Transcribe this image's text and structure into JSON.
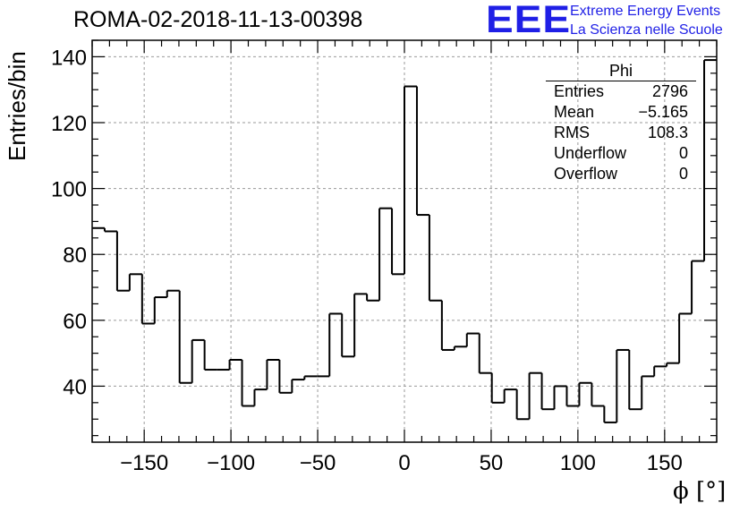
{
  "header": {
    "run_title": "ROMA-02-2018-11-13-00398",
    "logo_mark": "EEE",
    "logo_line1": "Extreme Energy Events",
    "logo_line2": "La Scienza nelle Scuole"
  },
  "stats": {
    "title": "Phi",
    "rows": [
      {
        "key": "Entries",
        "value": "2796"
      },
      {
        "key": "Mean",
        "value": "−5.165"
      },
      {
        "key": "RMS",
        "value": "108.3"
      },
      {
        "key": "Underflow",
        "value": "0"
      },
      {
        "key": "Overflow",
        "value": "0"
      }
    ]
  },
  "colors": {
    "histogram_line": "#000000",
    "grid": "#9a9a9a",
    "logo": "#1f1fe6"
  },
  "chart_data": {
    "type": "bar",
    "histogram": true,
    "title": "ROMA-02-2018-11-13-00398",
    "xlabel": "ϕ [°]",
    "ylabel": "Entries/bin",
    "xlim": [
      -180,
      180
    ],
    "ylim": [
      23,
      145
    ],
    "grid": true,
    "x_ticks": [
      -150,
      -100,
      -50,
      0,
      50,
      100,
      150
    ],
    "x_tick_labels": [
      "−150",
      "−100",
      "−50",
      "0",
      "50",
      "100",
      "150"
    ],
    "y_ticks": [
      40,
      60,
      80,
      100,
      120,
      140
    ],
    "y_tick_labels": [
      "40",
      "60",
      "80",
      "100",
      "120",
      "140"
    ],
    "bin_edges": [
      -180,
      -172.8,
      -165.6,
      -158.4,
      -151.2,
      -144,
      -136.8,
      -129.6,
      -122.4,
      -115.2,
      -108,
      -100.8,
      -93.6,
      -86.4,
      -79.2,
      -72,
      -64.8,
      -57.6,
      -50.4,
      -43.2,
      -36,
      -28.8,
      -21.6,
      -14.4,
      -7.2,
      0,
      7.2,
      14.4,
      21.6,
      28.8,
      36,
      43.2,
      50.4,
      57.6,
      64.8,
      72,
      79.2,
      86.4,
      93.6,
      100.8,
      108,
      115.2,
      122.4,
      129.6,
      136.8,
      144,
      151.2,
      158.4,
      165.6,
      172.8,
      180
    ],
    "values": [
      88,
      87,
      69,
      74,
      59,
      67,
      69,
      41,
      54,
      45,
      45,
      48,
      34,
      39,
      48,
      38,
      42,
      43,
      43,
      62,
      49,
      68,
      66,
      94,
      74,
      131,
      92,
      66,
      51,
      52,
      56,
      44,
      35,
      39,
      30,
      44,
      33,
      40,
      34,
      41,
      34,
      29,
      51,
      33,
      43,
      46,
      47,
      62,
      78,
      139
    ],
    "series": [
      {
        "name": "Phi",
        "values": [
          88,
          87,
          69,
          74,
          59,
          67,
          69,
          41,
          54,
          45,
          45,
          48,
          34,
          39,
          48,
          38,
          42,
          43,
          43,
          62,
          49,
          68,
          66,
          94,
          74,
          131,
          92,
          66,
          51,
          52,
          56,
          44,
          35,
          39,
          30,
          44,
          33,
          40,
          34,
          41,
          34,
          29,
          51,
          33,
          43,
          46,
          47,
          62,
          78,
          139
        ]
      }
    ]
  }
}
